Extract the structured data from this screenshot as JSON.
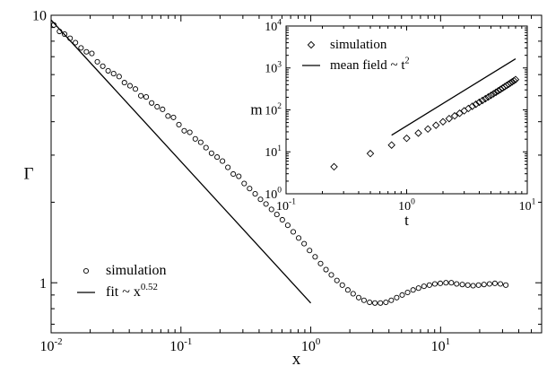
{
  "chart_data": [
    {
      "type": "scatter",
      "xscale": "log",
      "yscale": "log",
      "xlim": [
        0.01,
        60
      ],
      "ylim": [
        0.65,
        10
      ],
      "xlabel": "x",
      "ylabel": "Γ",
      "grid": false,
      "legend_position": "bottom-left",
      "xticks": [
        {
          "value": 0.01,
          "base": "10",
          "exp": "-2"
        },
        {
          "value": 0.1,
          "base": "10",
          "exp": "-1"
        },
        {
          "value": 1,
          "base": "10",
          "exp": "0"
        },
        {
          "value": 10,
          "base": "10",
          "exp": "1"
        }
      ],
      "yticks": [
        {
          "value": 1,
          "label": "1"
        },
        {
          "value": 10,
          "label": "10"
        }
      ],
      "series": [
        {
          "name": "simulation",
          "style": "open-circle",
          "points": [
            [
              0.0105,
              9.2
            ],
            [
              0.0116,
              8.7
            ],
            [
              0.0127,
              8.5
            ],
            [
              0.014,
              8.2
            ],
            [
              0.0154,
              7.9
            ],
            [
              0.017,
              7.55
            ],
            [
              0.0187,
              7.3
            ],
            [
              0.0206,
              7.2
            ],
            [
              0.0227,
              6.7
            ],
            [
              0.025,
              6.45
            ],
            [
              0.0275,
              6.2
            ],
            [
              0.0303,
              6.05
            ],
            [
              0.0334,
              5.9
            ],
            [
              0.0367,
              5.6
            ],
            [
              0.0405,
              5.45
            ],
            [
              0.0446,
              5.3
            ],
            [
              0.0491,
              5.0
            ],
            [
              0.054,
              4.95
            ],
            [
              0.0595,
              4.7
            ],
            [
              0.0656,
              4.55
            ],
            [
              0.0722,
              4.45
            ],
            [
              0.0795,
              4.2
            ],
            [
              0.0876,
              4.15
            ],
            [
              0.0965,
              3.9
            ],
            [
              0.106,
              3.7
            ],
            [
              0.117,
              3.65
            ],
            [
              0.129,
              3.45
            ],
            [
              0.142,
              3.35
            ],
            [
              0.156,
              3.2
            ],
            [
              0.172,
              3.05
            ],
            [
              0.19,
              2.95
            ],
            [
              0.209,
              2.85
            ],
            [
              0.23,
              2.7
            ],
            [
              0.253,
              2.55
            ],
            [
              0.279,
              2.5
            ],
            [
              0.307,
              2.35
            ],
            [
              0.338,
              2.25
            ],
            [
              0.373,
              2.15
            ],
            [
              0.41,
              2.05
            ],
            [
              0.452,
              1.97
            ],
            [
              0.498,
              1.88
            ],
            [
              0.548,
              1.8
            ],
            [
              0.604,
              1.72
            ],
            [
              0.665,
              1.64
            ],
            [
              0.733,
              1.55
            ],
            [
              0.807,
              1.47
            ],
            [
              0.889,
              1.4
            ],
            [
              0.979,
              1.32
            ],
            [
              1.08,
              1.25
            ],
            [
              1.19,
              1.18
            ],
            [
              1.31,
              1.12
            ],
            [
              1.44,
              1.07
            ],
            [
              1.59,
              1.02
            ],
            [
              1.75,
              0.98
            ],
            [
              1.93,
              0.94
            ],
            [
              2.12,
              0.91
            ],
            [
              2.34,
              0.88
            ],
            [
              2.57,
              0.86
            ],
            [
              2.84,
              0.845
            ],
            [
              3.12,
              0.84
            ],
            [
              3.44,
              0.84
            ],
            [
              3.79,
              0.845
            ],
            [
              4.17,
              0.86
            ],
            [
              4.59,
              0.88
            ],
            [
              5.06,
              0.9
            ],
            [
              5.57,
              0.92
            ],
            [
              6.14,
              0.94
            ],
            [
              6.76,
              0.955
            ],
            [
              7.45,
              0.97
            ],
            [
              8.2,
              0.98
            ],
            [
              9.03,
              0.99
            ],
            [
              9.95,
              0.995
            ],
            [
              11.0,
              1.0
            ],
            [
              12.1,
              1.0
            ],
            [
              13.3,
              0.99
            ],
            [
              14.7,
              0.985
            ],
            [
              16.2,
              0.98
            ],
            [
              17.8,
              0.975
            ],
            [
              19.6,
              0.98
            ],
            [
              21.6,
              0.985
            ],
            [
              23.8,
              0.99
            ],
            [
              26.2,
              0.995
            ],
            [
              28.9,
              0.99
            ],
            [
              31.8,
              0.98
            ]
          ]
        },
        {
          "name": "fit ~ x",
          "name_exp": "0.52",
          "style": "line",
          "points": [
            [
              0.01,
              9.6
            ],
            [
              1.0,
              0.84
            ]
          ]
        }
      ]
    },
    {
      "type": "scatter",
      "role": "inset",
      "xscale": "log",
      "yscale": "log",
      "xlim": [
        0.1,
        10
      ],
      "ylim": [
        1,
        10000
      ],
      "xlabel": "t",
      "ylabel": "m",
      "grid": false,
      "legend_position": "top-left",
      "xticks": [
        {
          "value": 0.1,
          "base": "10",
          "exp": "-1"
        },
        {
          "value": 1,
          "base": "10",
          "exp": "0"
        },
        {
          "value": 10,
          "base": "10",
          "exp": "1"
        }
      ],
      "yticks": [
        {
          "value": 1,
          "base": "10",
          "exp": "0"
        },
        {
          "value": 10,
          "base": "10",
          "exp": "1"
        },
        {
          "value": 100,
          "base": "10",
          "exp": "2"
        },
        {
          "value": 1000,
          "base": "10",
          "exp": "3"
        },
        {
          "value": 10000,
          "base": "10",
          "exp": "4"
        }
      ],
      "series": [
        {
          "name": "simulation",
          "style": "open-diamond",
          "points": [
            [
              0.25,
              4.4
            ],
            [
              0.5,
              9.1
            ],
            [
              0.75,
              14.5
            ],
            [
              1.0,
              21
            ],
            [
              1.25,
              28
            ],
            [
              1.5,
              35
            ],
            [
              1.75,
              43
            ],
            [
              2.0,
              52
            ],
            [
              2.25,
              62
            ],
            [
              2.5,
              72
            ],
            [
              2.75,
              83
            ],
            [
              3.0,
              95
            ],
            [
              3.25,
              108
            ],
            [
              3.5,
              122
            ],
            [
              3.75,
              136
            ],
            [
              4.0,
              152
            ],
            [
              4.25,
              168
            ],
            [
              4.5,
              185
            ],
            [
              4.75,
              203
            ],
            [
              5.0,
              222
            ],
            [
              5.25,
              242
            ],
            [
              5.5,
              263
            ],
            [
              5.75,
              285
            ],
            [
              6.0,
              308
            ],
            [
              6.25,
              332
            ],
            [
              6.5,
              357
            ],
            [
              6.75,
              383
            ],
            [
              7.0,
              410
            ],
            [
              7.25,
              438
            ],
            [
              7.5,
              467
            ],
            [
              7.75,
              497
            ],
            [
              8.0,
              528
            ]
          ]
        },
        {
          "name": "mean field ~ t",
          "name_exp": "2",
          "style": "line",
          "points": [
            [
              0.75,
              25
            ],
            [
              8.0,
              1650
            ]
          ]
        }
      ]
    }
  ]
}
